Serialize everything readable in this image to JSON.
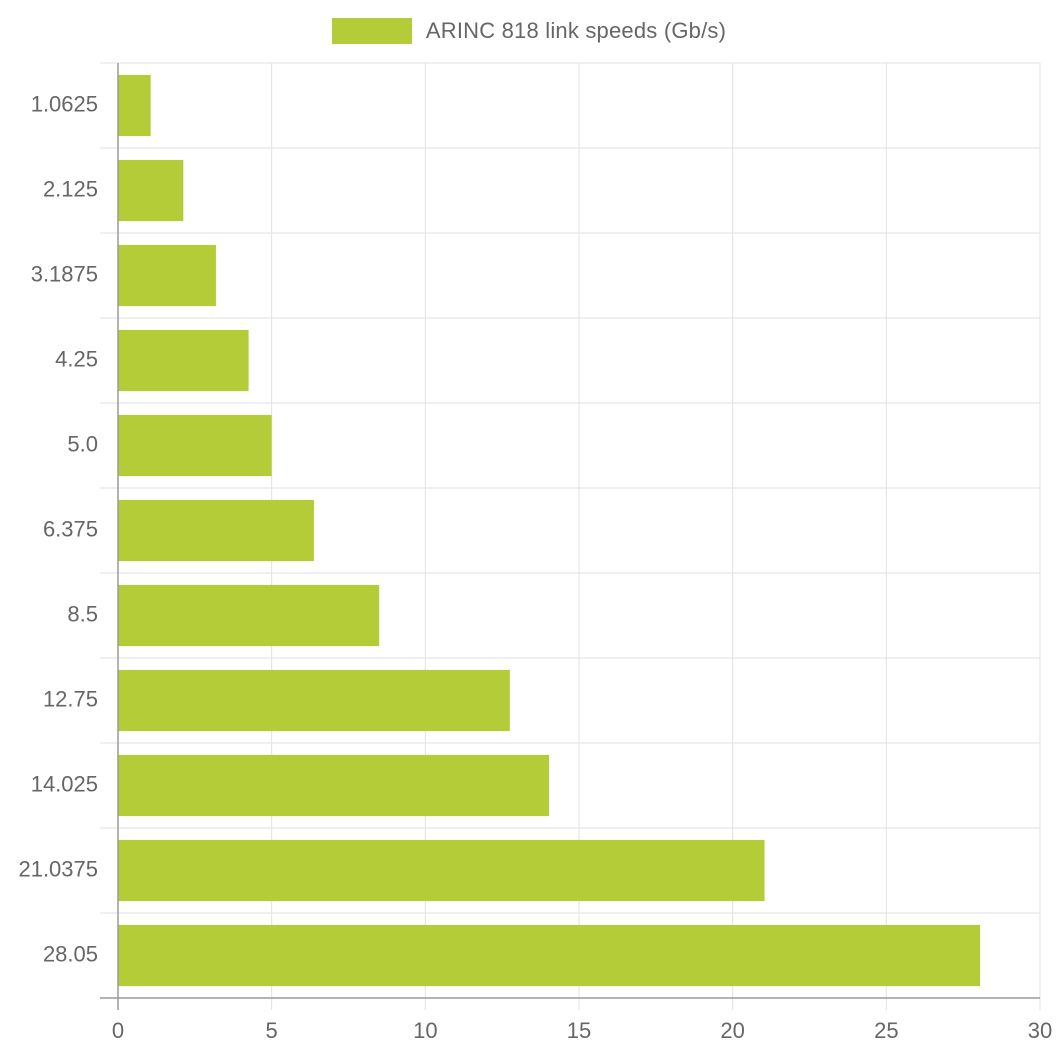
{
  "chart_data": {
    "type": "bar",
    "orientation": "horizontal",
    "categories": [
      "1.0625",
      "2.125",
      "3.1875",
      "4.25",
      "5.0",
      "6.375",
      "8.5",
      "12.75",
      "14.025",
      "21.0375",
      "28.05"
    ],
    "series": [
      {
        "name": "ARINC 818 link speeds (Gb/s)",
        "values": [
          1.0625,
          2.125,
          3.1875,
          4.25,
          5.0,
          6.375,
          8.5,
          12.75,
          14.025,
          21.0375,
          28.05
        ],
        "color": "#b5cc39"
      }
    ],
    "xlim": [
      0,
      30
    ],
    "xticks": [
      "0",
      "5",
      "10",
      "15",
      "20",
      "25",
      "30"
    ],
    "grid": true,
    "legend_position": "top"
  }
}
